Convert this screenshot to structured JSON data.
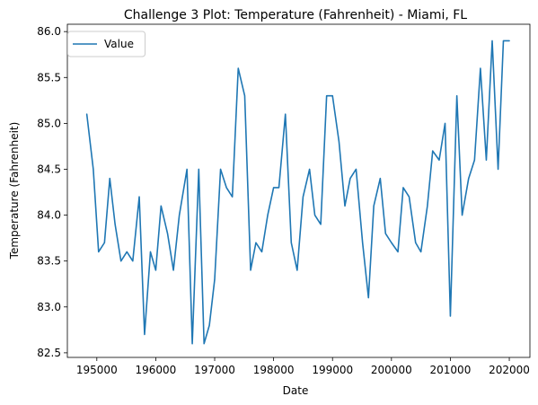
{
  "chart_data": {
    "type": "line",
    "title": "Challenge 3 Plot: Temperature (Fahrenheit) - Miami, FL",
    "xlabel": "Date",
    "ylabel": "Temperature (Fahrenheit)",
    "xlim": [
      194500,
      202350
    ],
    "ylim": [
      82.45,
      86.08
    ],
    "xticks": [
      195000,
      196000,
      197000,
      198000,
      199000,
      200000,
      201000,
      202000
    ],
    "yticks": [
      82.5,
      83.0,
      83.5,
      84.0,
      84.5,
      85.0,
      85.5,
      86.0
    ],
    "ytick_labels": [
      "82.5",
      "83.0",
      "83.5",
      "84.0",
      "84.5",
      "85.0",
      "85.5",
      "86.0"
    ],
    "legend_position": "upper-left",
    "grid": false,
    "series": [
      {
        "name": "Value",
        "color": "#1f77b4",
        "x": [
          194830,
          194940,
          195030,
          195130,
          195220,
          195310,
          195410,
          195510,
          195610,
          195720,
          195810,
          195910,
          196000,
          196090,
          196200,
          196300,
          196400,
          196530,
          196620,
          196730,
          196820,
          196910,
          197000,
          197100,
          197200,
          197300,
          197400,
          197510,
          197610,
          197700,
          197800,
          197900,
          198000,
          198090,
          198200,
          198300,
          198400,
          198500,
          198610,
          198700,
          198800,
          198900,
          199000,
          199110,
          199210,
          199300,
          199400,
          199510,
          199610,
          199700,
          199810,
          199900,
          200000,
          200110,
          200200,
          200300,
          200410,
          200500,
          200610,
          200700,
          200810,
          200910,
          201000,
          201110,
          201200,
          201310,
          201410,
          201510,
          201610,
          201710,
          201810,
          201900,
          202000
        ],
        "values": [
          85.1,
          84.5,
          83.6,
          83.7,
          84.4,
          83.9,
          83.5,
          83.6,
          83.5,
          84.2,
          82.7,
          83.6,
          83.4,
          84.1,
          83.8,
          83.4,
          84.0,
          84.5,
          82.6,
          84.5,
          82.6,
          82.8,
          83.3,
          84.5,
          84.3,
          84.2,
          85.6,
          85.3,
          83.4,
          83.7,
          83.6,
          84.0,
          84.3,
          84.3,
          85.1,
          83.7,
          83.4,
          84.2,
          84.5,
          84.0,
          83.9,
          85.3,
          85.3,
          84.8,
          84.1,
          84.4,
          84.5,
          83.7,
          83.1,
          84.1,
          84.4,
          83.8,
          83.7,
          83.6,
          84.3,
          84.2,
          83.7,
          83.6,
          84.1,
          84.7,
          84.6,
          85.0,
          82.9,
          85.3,
          84.0,
          84.4,
          84.6,
          85.6,
          84.6,
          85.9,
          84.5,
          85.9,
          85.9
        ]
      }
    ]
  }
}
